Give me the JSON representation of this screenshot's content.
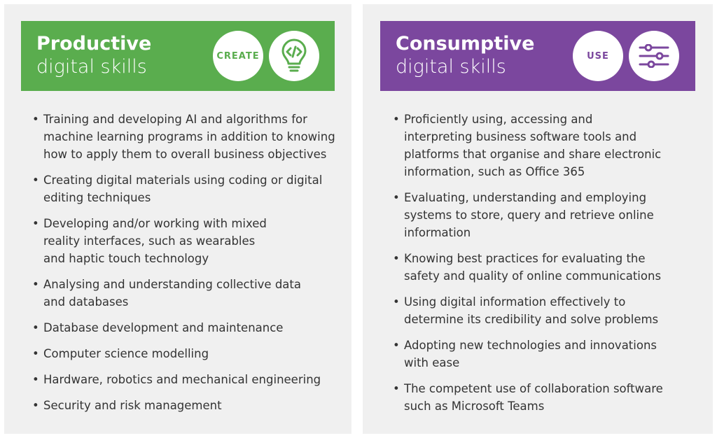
{
  "productive": {
    "title_bold": "Productive",
    "title_light": "digital skills",
    "badge": "CREATE",
    "icon": "lightbulb-code-icon",
    "color": "#5aad4e",
    "items": [
      "Training and developing AI and algorithms for machine learning programs in addition to knowing how to apply them to overall business objectives",
      "Creating digital materials using coding or digital editing techniques",
      "Developing and/or working with mixed reality interfaces, such as wearables and haptic touch technology",
      "Analysing and understanding collective data and databases",
      "Database development and maintenance",
      "Computer science modelling",
      "Hardware, robotics and mechanical engineering",
      "Security and risk management"
    ]
  },
  "consumptive": {
    "title_bold": "Consumptive",
    "title_light": "digital skills",
    "badge": "USE",
    "icon": "sliders-icon",
    "color": "#7b479e",
    "items": [
      "Proficiently using, accessing and interpreting business software tools and platforms that organise and share electronic information, such as Office 365",
      "Evaluating, understanding and employing systems to store, query and retrieve online information",
      "Knowing best practices for evaluating the safety and quality of online communications",
      "Using digital information effectively to determine its credibility and solve problems",
      "Adopting new technologies and innovations with ease",
      "The competent use of collaboration software such as Microsoft Teams"
    ]
  }
}
